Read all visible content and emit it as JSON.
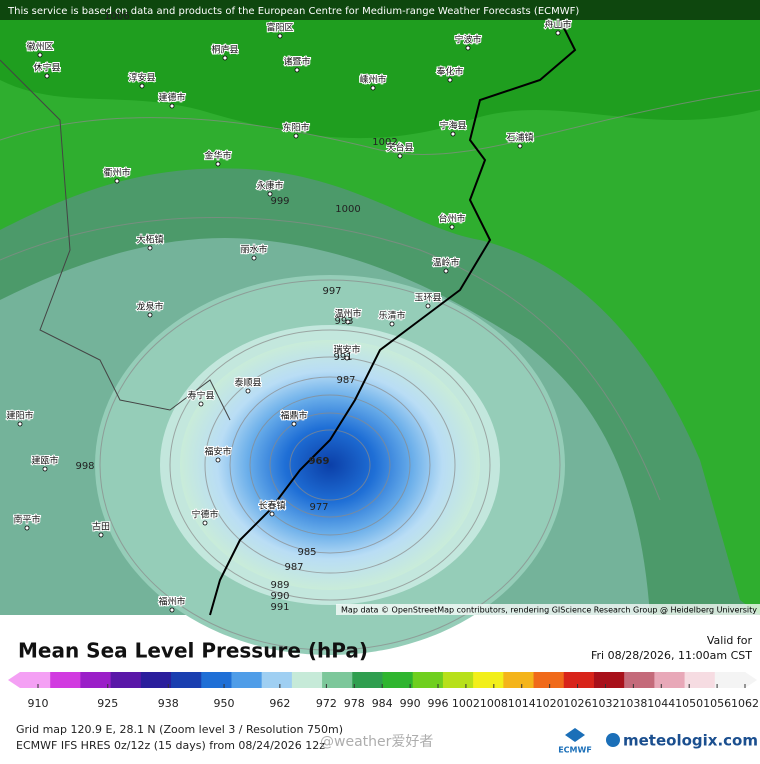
{
  "header": {
    "notice": "This service is based on data and products of the European Centre for Medium-range Weather Forecasts (ECMWF)",
    "attribution": "Map data © OpenStreetMap contributors, rendering GIScience Research Group @ Heidelberg University"
  },
  "places": [
    "徽州区",
    "休宁县",
    "淳安县",
    "桐庐县",
    "富阳区",
    "诸暨市",
    "嵊州市",
    "宁波市",
    "奉化市",
    "舟山市",
    "建德市",
    "东阳市",
    "宁海县",
    "石浦镇",
    "天台县",
    "金华市",
    "衢州市",
    "永康市",
    "台州市",
    "大柘镇",
    "丽水市",
    "温岭市",
    "龙泉市",
    "温州市",
    "乐清市",
    "玉环县",
    "瑞安市",
    "泰顺县",
    "寿宁县",
    "福鼎市",
    "福安市",
    "长春镇",
    "宁德市",
    "古田",
    "南平市",
    "建阳市",
    "建瓯市",
    "福州市"
  ],
  "isobar_labels": [
    1006,
    1002,
    1000,
    999,
    998,
    997,
    993,
    991,
    987,
    969,
    977,
    985,
    987,
    989,
    990,
    991
  ],
  "legend": {
    "title": "Mean Sea Level Pressure (hPa)",
    "valid_label": "Valid for",
    "valid_time": "Fri 08/28/2026, 11:00am CST",
    "ticks": [
      910,
      925,
      938,
      950,
      962,
      972,
      978,
      984,
      990,
      996,
      1002,
      1008,
      1014,
      1020,
      1026,
      1032,
      1038,
      1044,
      1050,
      1056,
      1062
    ]
  },
  "footer": {
    "grid": "Grid map 120.9 E, 28.1 N (Zoom level 3 / Resolution 750m)",
    "model": "ECMWF IFS HRES 0z/12z (15 days) from 08/24/2026 12z",
    "watermark": "@weather爱好者",
    "ecmwf": "ECMWF",
    "brand": "meteologix.com"
  }
}
